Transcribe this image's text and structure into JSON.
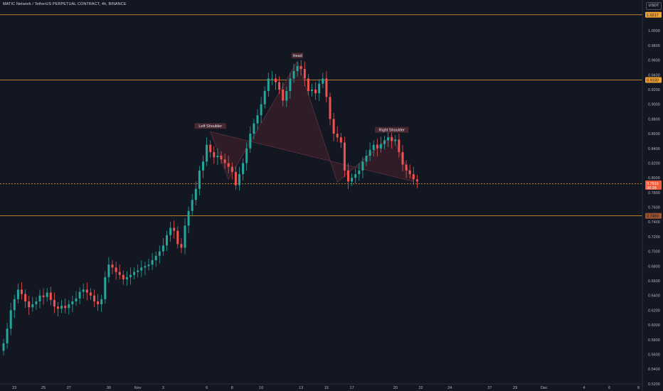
{
  "header": {
    "title": "MATIC Network / TetherUS PERPETUAL CONTRACT, 4h, BINANCE",
    "currency": "USDT"
  },
  "colors": {
    "background": "#131722",
    "up": "#26a69a",
    "down": "#ef5350",
    "level_line": "#f0a030",
    "pattern_fill": "#3a1f2a"
  },
  "chart_data": {
    "type": "candlestick",
    "ylim": [
      0.515,
      1.035
    ],
    "y_ticks": [
      "1.0000",
      "0.9800",
      "0.9600",
      "0.9400",
      "0.9200",
      "0.9000",
      "0.8800",
      "0.8600",
      "0.8400",
      "0.8200",
      "0.8000",
      "0.7800",
      "0.7600",
      "0.7400",
      "0.7200",
      "0.7000",
      "0.6800",
      "0.6600",
      "0.6400",
      "0.6200",
      "0.6000",
      "0.5800",
      "0.5600",
      "0.5400",
      "0.5200"
    ],
    "x_ticks": [
      "23",
      "25",
      "27",
      "30",
      "Nov",
      "3",
      "6",
      "8",
      "10",
      "13",
      "15",
      "17",
      "20",
      "22",
      "24",
      "27",
      "29",
      "Dec",
      "4",
      "6",
      "8"
    ],
    "close_series": [
      0.575,
      0.595,
      0.62,
      0.635,
      0.648,
      0.642,
      0.632,
      0.624,
      0.628,
      0.632,
      0.64,
      0.638,
      0.644,
      0.634,
      0.625,
      0.622,
      0.626,
      0.623,
      0.628,
      0.632,
      0.636,
      0.645,
      0.648,
      0.644,
      0.64,
      0.632,
      0.628,
      0.635,
      0.665,
      0.682,
      0.678,
      0.672,
      0.668,
      0.662,
      0.665,
      0.668,
      0.672,
      0.674,
      0.678,
      0.68,
      0.682,
      0.688,
      0.694,
      0.7,
      0.708,
      0.722,
      0.732,
      0.728,
      0.71,
      0.705,
      0.735,
      0.755,
      0.77,
      0.785,
      0.81,
      0.822,
      0.845,
      0.835,
      0.828,
      0.83,
      0.825,
      0.82,
      0.815,
      0.808,
      0.79,
      0.805,
      0.82,
      0.84,
      0.86,
      0.874,
      0.885,
      0.9,
      0.918,
      0.935,
      0.935,
      0.93,
      0.92,
      0.905,
      0.918,
      0.935,
      0.945,
      0.952,
      0.948,
      0.935,
      0.918,
      0.92,
      0.915,
      0.928,
      0.935,
      0.91,
      0.88,
      0.86,
      0.855,
      0.848,
      0.81,
      0.795,
      0.8,
      0.805,
      0.81,
      0.822,
      0.83,
      0.838,
      0.845,
      0.84,
      0.846,
      0.851,
      0.855,
      0.85,
      0.852,
      0.835,
      0.818,
      0.81,
      0.805,
      0.798,
      0.795
    ],
    "last_price": "0.7916",
    "countdown": "00:28",
    "levels": [
      {
        "value": "1.0217",
        "style": "solid"
      },
      {
        "value": "0.9330",
        "style": "solid"
      },
      {
        "value": "0.7918",
        "style": "dashed"
      },
      {
        "value": "0.7483",
        "style": "solid"
      }
    ],
    "pattern": {
      "type": "head-and-shoulders",
      "labels": [
        "Left Shoulder",
        "Head",
        "Right Shoulder"
      ],
      "points": [
        {
          "i": 57,
          "price": 0.8628
        },
        {
          "i": 62,
          "price": 0.798
        },
        {
          "i": 81,
          "price": 0.9585
        },
        {
          "i": 92,
          "price": 0.794
        },
        {
          "i": 107,
          "price": 0.8575
        },
        {
          "i": 113,
          "price": 0.795
        }
      ]
    },
    "grid": false,
    "legend": "none"
  }
}
